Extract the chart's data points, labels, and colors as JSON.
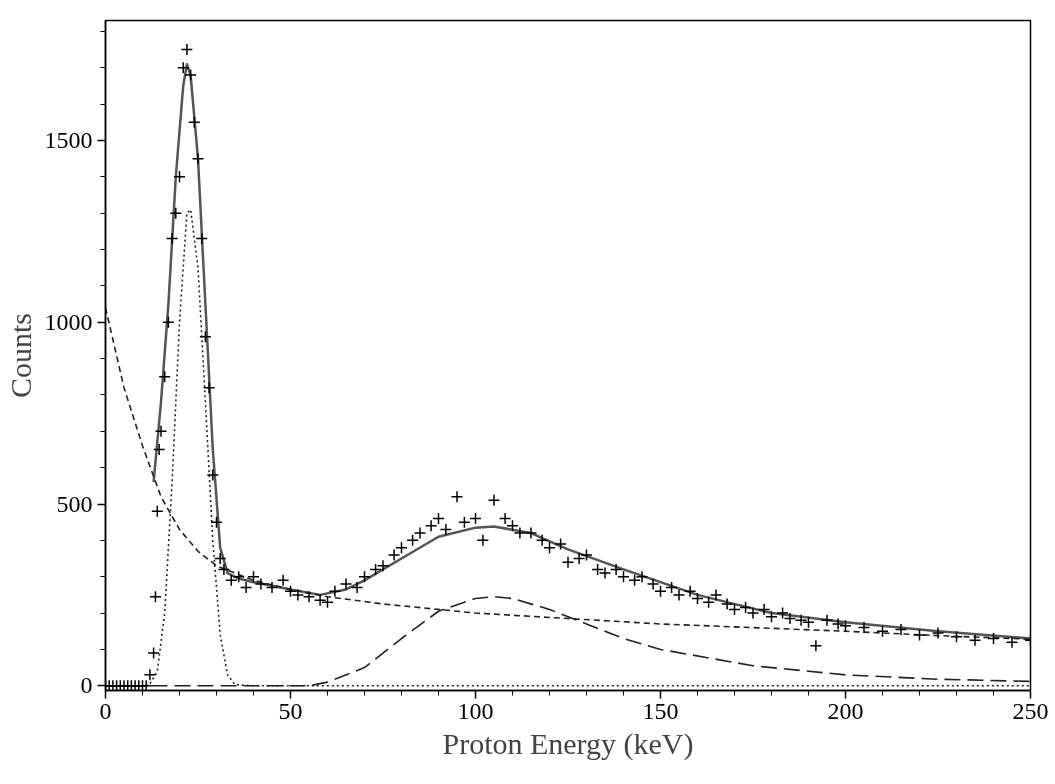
{
  "chart_data": {
    "type": "scatter",
    "xlabel": "Proton Energy (keV)",
    "ylabel": "Counts",
    "xlim": [
      0,
      250
    ],
    "ylim": [
      -13,
      1830
    ],
    "xticks": [
      0,
      50,
      100,
      150,
      200,
      250
    ],
    "yticks": [
      0,
      500,
      1000,
      1500
    ],
    "grid": false,
    "series": [
      {
        "marker": "cross",
        "color": "#000000",
        "x": [
          0,
          1,
          2,
          3,
          4,
          5,
          6,
          7,
          8,
          9,
          10,
          11,
          12,
          13,
          13.5,
          14,
          14.5,
          15,
          16,
          17,
          18,
          19,
          20,
          21,
          22,
          23,
          24,
          25,
          26,
          27,
          28,
          29,
          30,
          31,
          32,
          34,
          36,
          38,
          40,
          42,
          45,
          48,
          50,
          52,
          55,
          58,
          60,
          62,
          65,
          68,
          70,
          73,
          75,
          78,
          80,
          83,
          85,
          88,
          90,
          92,
          95,
          97,
          100,
          102,
          105,
          108,
          110,
          112,
          115,
          118,
          120,
          123,
          125,
          128,
          130,
          133,
          135,
          138,
          140,
          143,
          145,
          148,
          150,
          153,
          155,
          158,
          160,
          163,
          165,
          168,
          170,
          173,
          175,
          178,
          180,
          183,
          185,
          188,
          190,
          192,
          195,
          198,
          200,
          205,
          210,
          215,
          220,
          225,
          230,
          235,
          240,
          245,
          250
        ],
        "values": [
          0,
          0,
          0,
          0,
          0,
          0,
          0,
          0,
          0,
          0,
          0,
          0,
          30,
          90,
          245,
          480,
          650,
          700,
          850,
          1000,
          1230,
          1300,
          1400,
          1700,
          1750,
          1680,
          1550,
          1450,
          1230,
          960,
          820,
          580,
          450,
          350,
          320,
          290,
          300,
          270,
          300,
          280,
          270,
          290,
          260,
          250,
          245,
          235,
          230,
          260,
          280,
          270,
          300,
          320,
          330,
          360,
          380,
          400,
          420,
          440,
          460,
          430,
          520,
          450,
          460,
          400,
          510,
          460,
          440,
          420,
          420,
          400,
          380,
          390,
          340,
          350,
          360,
          320,
          310,
          320,
          300,
          290,
          300,
          280,
          260,
          270,
          250,
          260,
          240,
          230,
          250,
          225,
          210,
          215,
          200,
          210,
          190,
          200,
          185,
          180,
          175,
          110,
          180,
          170,
          165,
          160,
          150,
          155,
          140,
          145,
          135,
          125,
          130,
          120,
          125
        ]
      },
      {
        "type": "line",
        "line_style": "solid",
        "color": "#555555",
        "x": [
          13,
          15,
          17,
          19,
          21,
          22,
          23,
          25,
          27,
          29,
          31,
          33,
          36,
          40,
          45,
          50,
          58,
          65,
          70,
          80,
          90,
          100,
          105,
          115,
          125,
          140,
          160,
          180,
          200,
          225,
          250
        ],
        "values": [
          560,
          780,
          1050,
          1400,
          1650,
          1710,
          1680,
          1450,
          1050,
          650,
          380,
          310,
          295,
          285,
          275,
          265,
          250,
          265,
          290,
          350,
          410,
          435,
          438,
          420,
          375,
          320,
          250,
          200,
          175,
          150,
          130
        ]
      },
      {
        "type": "line",
        "line_style": "dashed",
        "color": "#222222",
        "x": [
          0,
          5,
          10,
          15,
          20,
          25,
          30,
          40,
          50,
          60,
          75,
          100,
          125,
          150,
          175,
          200,
          225,
          250
        ],
        "values": [
          1040,
          820,
          660,
          520,
          430,
          370,
          330,
          290,
          265,
          245,
          225,
          200,
          185,
          170,
          160,
          150,
          138,
          128
        ]
      },
      {
        "type": "line",
        "line_style": "dotted",
        "color": "#222222",
        "x": [
          0,
          10,
          12,
          14,
          16,
          18,
          20,
          22,
          23,
          25,
          27,
          29,
          31,
          33,
          35,
          40,
          250
        ],
        "values": [
          0,
          0,
          5,
          40,
          200,
          560,
          1000,
          1300,
          1310,
          1150,
          780,
          400,
          140,
          30,
          3,
          0,
          0
        ]
      },
      {
        "type": "line",
        "line_style": "longdash",
        "color": "#222222",
        "x": [
          0,
          55,
          60,
          70,
          80,
          90,
          100,
          105,
          110,
          120,
          130,
          140,
          150,
          175,
          200,
          225,
          250
        ],
        "values": [
          0,
          0,
          10,
          50,
          130,
          205,
          240,
          245,
          240,
          210,
          170,
          130,
          100,
          55,
          30,
          18,
          12
        ]
      }
    ]
  }
}
